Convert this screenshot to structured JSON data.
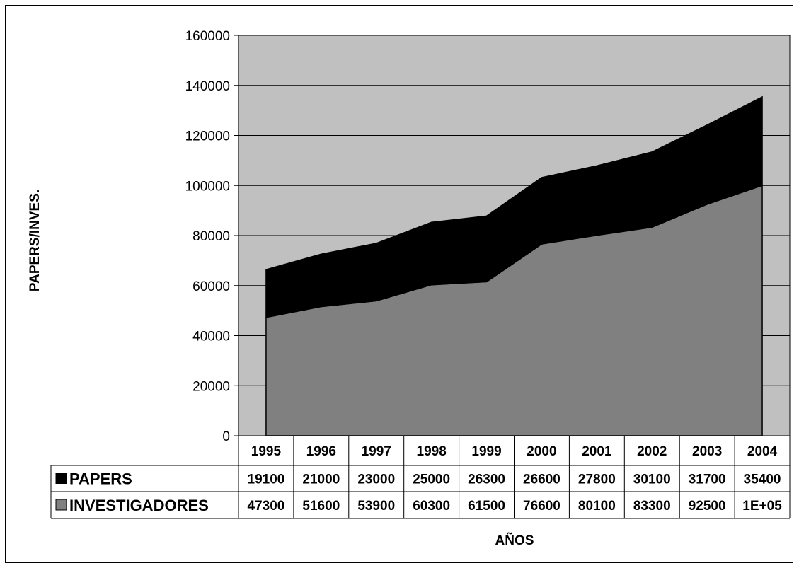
{
  "chart_data": {
    "type": "area",
    "stacked": true,
    "xlabel": "AÑOS",
    "ylabel": "PAPERS/INVES.",
    "ylim": [
      0,
      160000
    ],
    "yticks": [
      "0",
      "20000",
      "40000",
      "60000",
      "80000",
      "100000",
      "120000",
      "140000",
      "160000"
    ],
    "categories": [
      "1995",
      "1996",
      "1997",
      "1998",
      "1999",
      "2000",
      "2001",
      "2002",
      "2003",
      "2004"
    ],
    "grid": true,
    "plot_background": "#c0c0c0",
    "series": [
      {
        "name": "PAPERS",
        "color": "#000000",
        "values": [
          19100,
          21000,
          23000,
          25000,
          26300,
          26600,
          27800,
          30100,
          31700,
          35400
        ],
        "labels": [
          "19100",
          "21000",
          "23000",
          "25000",
          "26300",
          "26600",
          "27800",
          "30100",
          "31700",
          "35400"
        ]
      },
      {
        "name": "INVESTIGADORES",
        "color": "#808080",
        "values": [
          47300,
          51600,
          53900,
          60300,
          61500,
          76600,
          80100,
          83300,
          92500,
          100000
        ],
        "labels": [
          "47300",
          "51600",
          "53900",
          "60300",
          "61500",
          "76600",
          "80100",
          "83300",
          "92500",
          "1E+05"
        ]
      }
    ],
    "legend": "data-table-left"
  }
}
